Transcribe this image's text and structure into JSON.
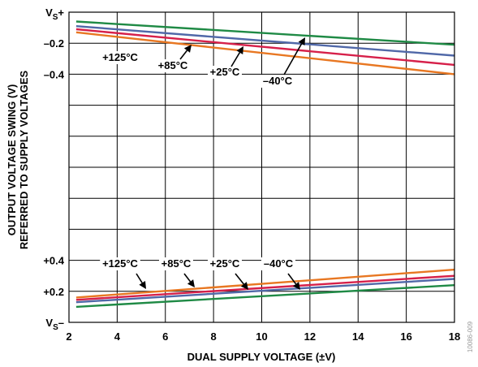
{
  "chart_data": {
    "type": "line",
    "title": "",
    "xlabel": "DUAL SUPPLY VOLTAGE (±V)",
    "ylabel_line1": "OUTPUT VOLTAGE SWING (V)",
    "ylabel_line2": "REFERRED TO SUPPLY VOLTAGES",
    "xlim": [
      2,
      18
    ],
    "x_ticks": [
      {
        "value": 2,
        "label": "2"
      },
      {
        "value": 4,
        "label": "4"
      },
      {
        "value": 6,
        "label": "6"
      },
      {
        "value": 8,
        "label": "8"
      },
      {
        "value": 10,
        "label": "10"
      },
      {
        "value": 12,
        "label": "12"
      },
      {
        "value": 14,
        "label": "14"
      },
      {
        "value": 16,
        "label": "16"
      },
      {
        "value": 18,
        "label": "18"
      }
    ],
    "y_ticks": [
      {
        "index": 0,
        "main": "V",
        "sub": "S",
        "suffix": "+",
        "position": "sub"
      },
      {
        "index": 1,
        "main": "–0.2"
      },
      {
        "index": 2,
        "main": "–0.4"
      },
      {
        "index": 8,
        "main": "+0.4"
      },
      {
        "index": 9,
        "main": "+0.2"
      },
      {
        "index": 10,
        "main": "V",
        "sub": "S",
        "suffix": "–",
        "position": "sub"
      }
    ],
    "grid": true,
    "x": [
      2.3,
      18
    ],
    "series": [
      {
        "name": "+125°C",
        "color": "#e87722",
        "panel": "upper",
        "values": [
          -0.13,
          -0.4
        ]
      },
      {
        "name": "+85°C",
        "color": "#d6204a",
        "panel": "upper",
        "values": [
          -0.11,
          -0.34
        ]
      },
      {
        "name": "+25°C",
        "color": "#5068a8",
        "panel": "upper",
        "values": [
          -0.09,
          -0.28
        ]
      },
      {
        "name": "–40°C",
        "color": "#1f8a45",
        "panel": "upper",
        "values": [
          -0.06,
          -0.21
        ]
      },
      {
        "name": "+125°C",
        "color": "#e87722",
        "panel": "lower",
        "values": [
          0.16,
          0.34
        ]
      },
      {
        "name": "+85°C",
        "color": "#d6204a",
        "panel": "lower",
        "values": [
          0.145,
          0.3
        ]
      },
      {
        "name": "+25°C",
        "color": "#5068a8",
        "panel": "lower",
        "values": [
          0.13,
          0.28
        ]
      },
      {
        "name": "–40°C",
        "color": "#1f8a45",
        "panel": "lower",
        "values": [
          0.1,
          0.24
        ]
      }
    ],
    "annotations": [
      {
        "text": "+125°C",
        "panel": "upper"
      },
      {
        "text": "+85°C",
        "panel": "upper"
      },
      {
        "text": "+25°C",
        "panel": "upper"
      },
      {
        "text": "–40°C",
        "panel": "upper"
      },
      {
        "text": "+125°C",
        "panel": "lower"
      },
      {
        "text": "+85°C",
        "panel": "lower"
      },
      {
        "text": "+25°C",
        "panel": "lower"
      },
      {
        "text": "–40°C",
        "panel": "lower"
      }
    ],
    "side_code": "10086-009"
  }
}
